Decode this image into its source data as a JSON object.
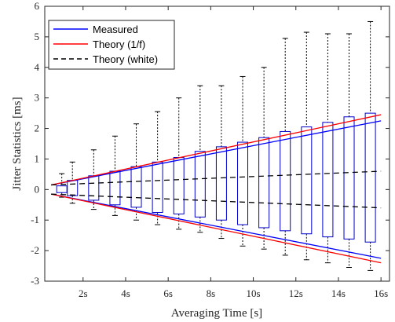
{
  "chart_data": {
    "type": "box",
    "xlabel": "Averaging Time [s]",
    "ylabel": "Jitter Statistics [ms]",
    "xlim": [
      0.2,
      16.4
    ],
    "ylim": [
      -3,
      6
    ],
    "x_ticks": [
      2,
      4,
      6,
      8,
      10,
      12,
      14,
      16
    ],
    "x_tick_labels": [
      "2s",
      "4s",
      "6s",
      "8s",
      "10s",
      "12s",
      "14s",
      "16s"
    ],
    "y_ticks": [
      -3,
      -2,
      -1,
      0,
      1,
      2,
      3,
      4,
      5,
      6
    ],
    "y_tick_labels": [
      "-3",
      "-2",
      "-1",
      "0",
      "1",
      "2",
      "3",
      "4",
      "5",
      "6"
    ],
    "grid": false,
    "legend_position": "top-left",
    "box_color": "#0000cc",
    "whisker_color": "#000000",
    "boxes": [
      {
        "t": 1,
        "whisker_low": -0.25,
        "q1": -0.1,
        "q3": 0.12,
        "whisker_high": 0.52
      },
      {
        "t": 1.5,
        "whisker_low": -0.45,
        "q1": -0.2,
        "q3": 0.3,
        "whisker_high": 0.9
      },
      {
        "t": 2.5,
        "whisker_low": -0.65,
        "q1": -0.35,
        "q3": 0.45,
        "whisker_high": 1.3
      },
      {
        "t": 3.5,
        "whisker_low": -0.85,
        "q1": -0.5,
        "q3": 0.6,
        "whisker_high": 1.75
      },
      {
        "t": 4.5,
        "whisker_low": -1.0,
        "q1": -0.58,
        "q3": 0.75,
        "whisker_high": 2.15
      },
      {
        "t": 5.5,
        "whisker_low": -1.15,
        "q1": -0.75,
        "q3": 0.9,
        "whisker_high": 2.55
      },
      {
        "t": 6.5,
        "whisker_low": -1.3,
        "q1": -0.8,
        "q3": 1.05,
        "whisker_high": 3.0
      },
      {
        "t": 7.5,
        "whisker_low": -1.4,
        "q1": -0.9,
        "q3": 1.25,
        "whisker_high": 3.4
      },
      {
        "t": 8.5,
        "whisker_low": -1.6,
        "q1": -1.0,
        "q3": 1.4,
        "whisker_high": 3.4
      },
      {
        "t": 9.5,
        "whisker_low": -1.85,
        "q1": -1.15,
        "q3": 1.55,
        "whisker_high": 3.7
      },
      {
        "t": 10.5,
        "whisker_low": -1.95,
        "q1": -1.25,
        "q3": 1.7,
        "whisker_high": 4.0
      },
      {
        "t": 11.5,
        "whisker_low": -2.15,
        "q1": -1.35,
        "q3": 1.9,
        "whisker_high": 4.95
      },
      {
        "t": 12.5,
        "whisker_low": -2.3,
        "q1": -1.45,
        "q3": 2.05,
        "whisker_high": 5.15
      },
      {
        "t": 13.5,
        "whisker_low": -2.4,
        "q1": -1.55,
        "q3": 2.2,
        "whisker_high": 5.1
      },
      {
        "t": 14.5,
        "whisker_low": -2.55,
        "q1": -1.62,
        "q3": 2.38,
        "whisker_high": 5.1
      },
      {
        "t": 15.5,
        "whisker_low": -2.65,
        "q1": -1.72,
        "q3": 2.5,
        "whisker_high": 5.5
      }
    ],
    "series": [
      {
        "name": "Measured",
        "color": "#0000ff",
        "style": "solid",
        "upper": {
          "x": [
            0.5,
            16
          ],
          "y": [
            0.15,
            2.25
          ]
        },
        "lower": {
          "x": [
            0.5,
            16
          ],
          "y": [
            -0.15,
            -2.25
          ]
        }
      },
      {
        "name": "Theory (1/f)",
        "color": "#ff0000",
        "style": "solid",
        "upper": {
          "x": [
            0.5,
            16
          ],
          "y": [
            0.15,
            2.45
          ]
        },
        "lower": {
          "x": [
            0.5,
            16
          ],
          "y": [
            -0.15,
            -2.4
          ]
        }
      },
      {
        "name": "Theory (white)",
        "color": "#000000",
        "style": "dashed",
        "upper": {
          "x": [
            0.5,
            16
          ],
          "y": [
            0.15,
            0.6
          ]
        },
        "lower": {
          "x": [
            0.5,
            16
          ],
          "y": [
            -0.15,
            -0.6
          ]
        }
      }
    ]
  }
}
